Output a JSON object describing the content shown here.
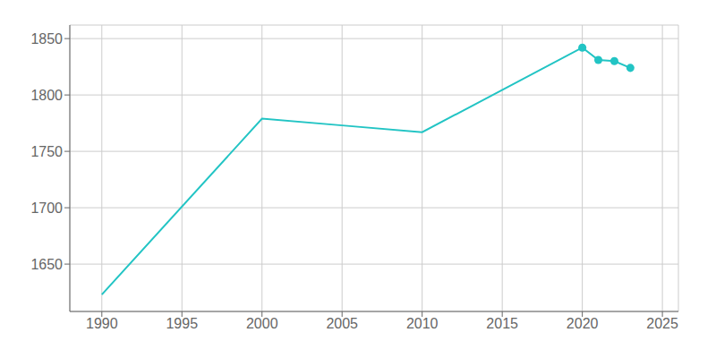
{
  "chart_data": {
    "type": "line",
    "x": [
      1990,
      2000,
      2005,
      2010,
      2020,
      2021,
      2022,
      2023
    ],
    "series": [
      {
        "type": "line",
        "color": "#22c4c4",
        "marker": "none",
        "line_style": "solid",
        "values": [
          1623,
          1779,
          1773,
          1767,
          1842,
          1831,
          1830,
          1824
        ]
      },
      {
        "type": "scatter",
        "color": "#22c4c4",
        "marker": "circle",
        "values": [
          null,
          null,
          null,
          null,
          1842,
          1831,
          1830,
          1824
        ]
      }
    ],
    "xlim": [
      1988,
      2026
    ],
    "ylim": [
      1608,
      1862
    ],
    "xticks": [
      1990,
      1995,
      2000,
      2005,
      2010,
      2015,
      2020,
      2025
    ],
    "yticks": [
      1650,
      1700,
      1750,
      1800,
      1850
    ],
    "grid": true
  }
}
